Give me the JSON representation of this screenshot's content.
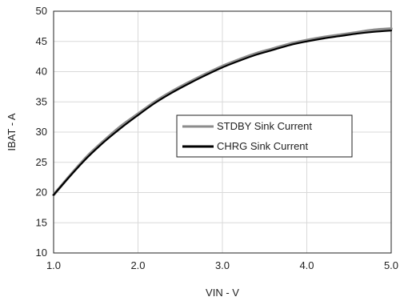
{
  "chart_data": {
    "type": "line",
    "title": "",
    "xlabel": "VIN - V",
    "ylabel": "IBAT - A",
    "xlim": [
      1.0,
      5.0
    ],
    "ylim": [
      10,
      50
    ],
    "x_ticks": [
      "1.0",
      "2.0",
      "3.0",
      "4.0",
      "5.0"
    ],
    "y_ticks": [
      "10",
      "15",
      "20",
      "25",
      "30",
      "35",
      "40",
      "45",
      "50"
    ],
    "grid": true,
    "legend_position": "center-right",
    "series": [
      {
        "name": "STDBY Sink Current",
        "color": "#8c8c8c",
        "x": [
          1.0,
          1.2,
          1.4,
          1.6,
          1.8,
          2.0,
          2.2,
          2.4,
          2.6,
          2.8,
          3.0,
          3.2,
          3.4,
          3.6,
          3.8,
          4.0,
          4.2,
          4.4,
          4.6,
          4.8,
          5.0
        ],
        "y": [
          19.6,
          22.9,
          26.0,
          28.6,
          31.0,
          33.0,
          35.0,
          36.7,
          38.2,
          39.6,
          40.9,
          42.0,
          43.0,
          43.8,
          44.6,
          45.2,
          45.7,
          46.1,
          46.5,
          46.9,
          47.1
        ]
      },
      {
        "name": "CHRG Sink Current",
        "color": "#000000",
        "x": [
          1.0,
          1.2,
          1.4,
          1.6,
          1.8,
          2.0,
          2.2,
          2.4,
          2.6,
          2.8,
          3.0,
          3.2,
          3.4,
          3.6,
          3.8,
          4.0,
          4.2,
          4.4,
          4.6,
          4.8,
          5.0
        ],
        "y": [
          19.6,
          22.8,
          25.8,
          28.4,
          30.7,
          32.8,
          34.8,
          36.5,
          38.0,
          39.4,
          40.7,
          41.8,
          42.8,
          43.6,
          44.4,
          45.0,
          45.5,
          45.9,
          46.3,
          46.6,
          46.8
        ]
      }
    ]
  }
}
